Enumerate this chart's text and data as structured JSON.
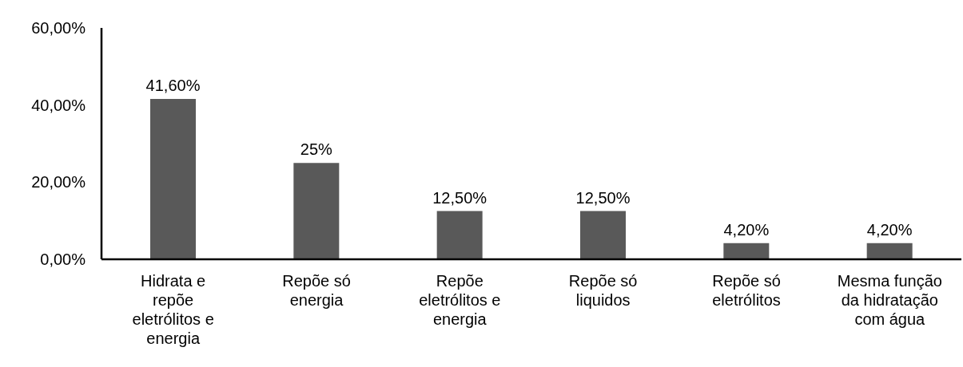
{
  "chart_data": {
    "type": "bar",
    "categories": [
      "Hidrata e repõe eletrólitos e energia",
      "Repõe só energia",
      "Repõe eletrólitos e energia",
      "Repõe só liquidos",
      "Repõe só eletrólitos",
      "Mesma função da hidratação com água"
    ],
    "values": [
      41.6,
      25,
      12.5,
      12.5,
      4.2,
      4.2
    ],
    "value_labels": [
      "41,60%",
      "25%",
      "12,50%",
      "12,50%",
      "4,20%",
      "4,20%"
    ],
    "color": "#595959",
    "ylim": [
      0,
      60
    ],
    "yticks": [
      {
        "value": 0,
        "label": "0,00%"
      },
      {
        "value": 20,
        "label": "20,00%"
      },
      {
        "value": 40,
        "label": "40,00%"
      },
      {
        "value": 60,
        "label": "60,00%"
      }
    ],
    "grid": false,
    "legend": false
  }
}
